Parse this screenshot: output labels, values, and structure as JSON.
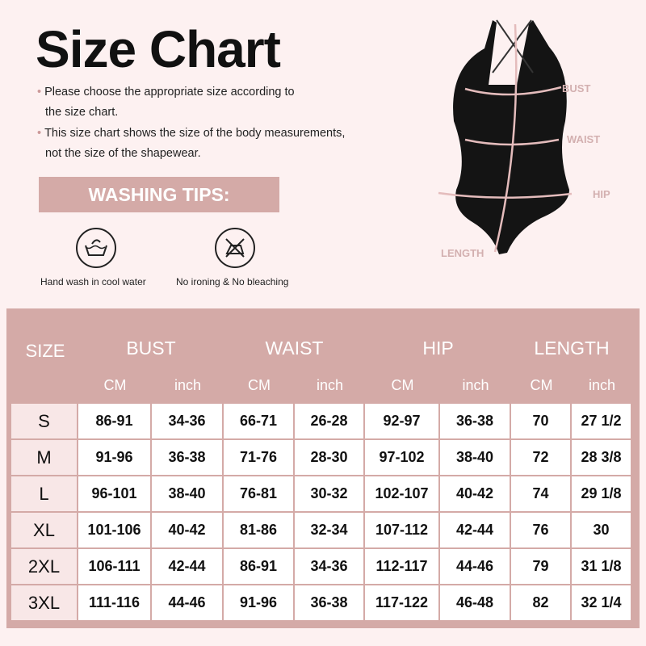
{
  "title": "Size Chart",
  "notes": [
    "Please choose the appropriate size according to",
    "the size chart.",
    "This size chart shows the size of the body measurements,",
    "not the size of the shapewear."
  ],
  "washing": {
    "title": "WASHING TIPS:",
    "items": [
      {
        "icon": "hand-wash-icon",
        "label": "Hand wash in cool water"
      },
      {
        "icon": "no-iron-no-bleach-icon",
        "label": "No ironing & No bleaching"
      }
    ]
  },
  "figure": {
    "labels": {
      "bust": "BUST",
      "waist": "WAIST",
      "hip": "HIP",
      "length": "LENGTH"
    }
  },
  "colors": {
    "accent": "#d4aaa7",
    "background": "#fdf1f1",
    "size_cell": "#f8e7e7"
  },
  "table": {
    "size_header": "SIZE",
    "groups": [
      "BUST",
      "WAIST",
      "HIP",
      "LENGTH"
    ],
    "units": [
      "CM",
      "inch",
      "CM",
      "inch",
      "CM",
      "inch",
      "CM",
      "inch"
    ],
    "rows": [
      {
        "size": "S",
        "values": [
          "86-91",
          "34-36",
          "66-71",
          "26-28",
          "92-97",
          "36-38",
          "70",
          "27 1/2"
        ]
      },
      {
        "size": "M",
        "values": [
          "91-96",
          "36-38",
          "71-76",
          "28-30",
          "97-102",
          "38-40",
          "72",
          "28 3/8"
        ]
      },
      {
        "size": "L",
        "values": [
          "96-101",
          "38-40",
          "76-81",
          "30-32",
          "102-107",
          "40-42",
          "74",
          "29 1/8"
        ]
      },
      {
        "size": "XL",
        "values": [
          "101-106",
          "40-42",
          "81-86",
          "32-34",
          "107-112",
          "42-44",
          "76",
          "30"
        ]
      },
      {
        "size": "2XL",
        "values": [
          "106-111",
          "42-44",
          "86-91",
          "34-36",
          "112-117",
          "44-46",
          "79",
          "31 1/8"
        ]
      },
      {
        "size": "3XL",
        "values": [
          "111-116",
          "44-46",
          "91-96",
          "36-38",
          "117-122",
          "46-48",
          "82",
          "32 1/4"
        ]
      }
    ]
  }
}
